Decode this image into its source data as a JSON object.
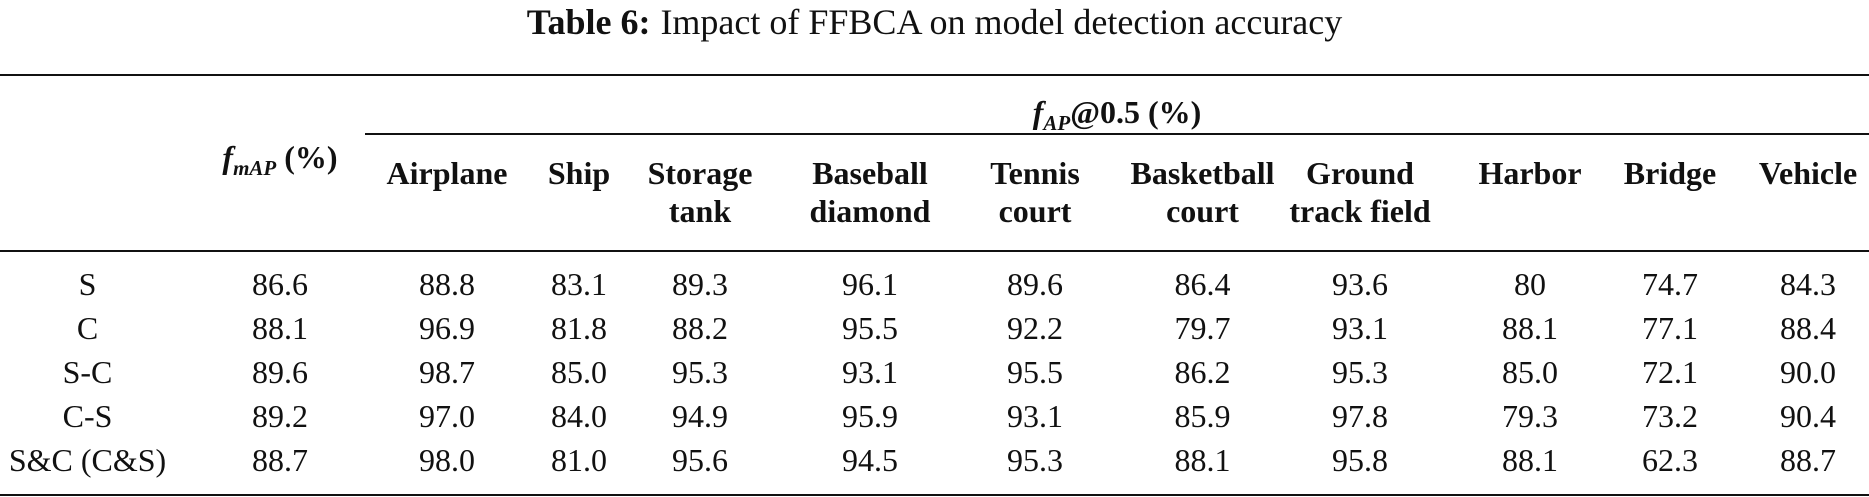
{
  "caption": {
    "label": "Table 6:",
    "text": "Impact of FFBCA on model detection accuracy"
  },
  "header": {
    "fmap": {
      "symbol": "f",
      "subscript": "mAP",
      "suffix": "(%)"
    },
    "fap": {
      "symbol": "f",
      "subscript": "AP",
      "suffix": "@0.5 (%)"
    },
    "classes": [
      {
        "line1": "Airplane",
        "line2": ""
      },
      {
        "line1": "Ship",
        "line2": ""
      },
      {
        "line1": "Storage",
        "line2": "tank"
      },
      {
        "line1": "Baseball",
        "line2": "diamond"
      },
      {
        "line1": "Tennis",
        "line2": "court"
      },
      {
        "line1": "Basketball",
        "line2": "court"
      },
      {
        "line1": "Ground",
        "line2": "track field"
      },
      {
        "line1": "Harbor",
        "line2": ""
      },
      {
        "line1": "Bridge",
        "line2": ""
      },
      {
        "line1": "Vehicle",
        "line2": ""
      }
    ]
  },
  "rows": [
    {
      "method": "S",
      "fmap": "86.6",
      "values": [
        "88.8",
        "83.1",
        "89.3",
        "96.1",
        "89.6",
        "86.4",
        "93.6",
        "80",
        "74.7",
        "84.3"
      ]
    },
    {
      "method": "C",
      "fmap": "88.1",
      "values": [
        "96.9",
        "81.8",
        "88.2",
        "95.5",
        "92.2",
        "79.7",
        "93.1",
        "88.1",
        "77.1",
        "88.4"
      ]
    },
    {
      "method": "S-C",
      "fmap": "89.6",
      "values": [
        "98.7",
        "85.0",
        "95.3",
        "93.1",
        "95.5",
        "86.2",
        "95.3",
        "85.0",
        "72.1",
        "90.0"
      ]
    },
    {
      "method": "C-S",
      "fmap": "89.2",
      "values": [
        "97.0",
        "84.0",
        "94.9",
        "95.9",
        "93.1",
        "85.9",
        "97.8",
        "79.3",
        "73.2",
        "90.4"
      ]
    },
    {
      "method": "S&C (C&S)",
      "fmap": "88.7",
      "values": [
        "98.0",
        "81.0",
        "95.6",
        "94.5",
        "95.3",
        "88.1",
        "95.8",
        "88.1",
        "62.3",
        "88.7"
      ]
    }
  ]
}
